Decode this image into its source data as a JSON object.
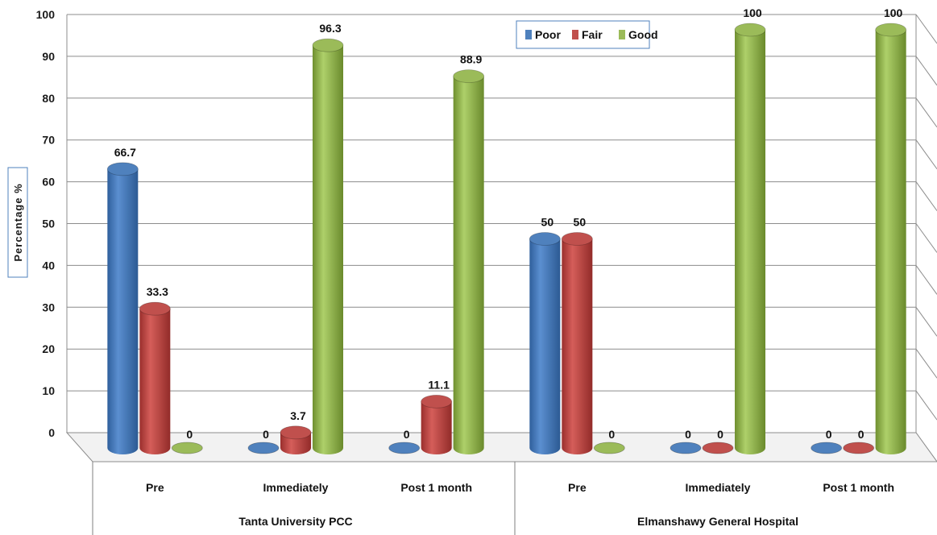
{
  "chart_data": {
    "type": "bar",
    "ylabel": "Percentage %",
    "ylim": [
      0,
      100
    ],
    "yticks": [
      0,
      10,
      20,
      30,
      40,
      50,
      60,
      70,
      80,
      90,
      100
    ],
    "legend_position": "top-center",
    "groups": [
      {
        "name": "Tanta University PCC",
        "categories": [
          "Pre",
          "Immediately",
          "Post 1 month"
        ]
      },
      {
        "name": "Elmanshawy General Hospital",
        "categories": [
          "Pre",
          "Immediately",
          "Post 1 month"
        ]
      }
    ],
    "series": [
      {
        "name": "Poor",
        "color": "#4f81bd",
        "values": [
          66.7,
          0,
          0,
          50,
          0,
          0
        ],
        "labels": [
          "66.7",
          "0",
          "0",
          "50",
          "0",
          "0"
        ]
      },
      {
        "name": "Fair",
        "color": "#c0504d",
        "values": [
          33.3,
          3.7,
          11.1,
          50,
          0,
          0
        ],
        "labels": [
          "33.3",
          "3.7",
          "11.1",
          "50",
          "0",
          "0"
        ]
      },
      {
        "name": "Good",
        "color": "#9bbb59",
        "values": [
          0,
          96.3,
          88.9,
          0,
          100,
          100
        ],
        "labels": [
          "0",
          "96.3",
          "88.9",
          "0",
          "100",
          "100"
        ]
      }
    ]
  }
}
